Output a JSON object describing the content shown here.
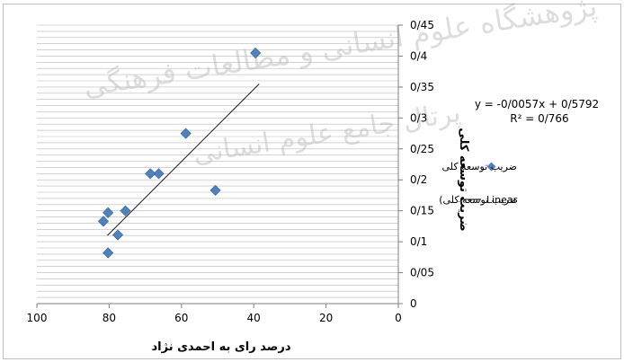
{
  "watermark": {
    "line1": "پژوهشگاه علوم انسانی و مطالعات فرهنگی",
    "line2": "پرتال جامع علوم انسانی"
  },
  "chart_data": {
    "type": "scatter",
    "title": "",
    "xlabel": "درصد رای به احمدی نژاد",
    "ylabel": "ضریب توسعه کلی",
    "x_reversed": true,
    "xlim": [
      0,
      100
    ],
    "ylim": [
      0,
      0.45
    ],
    "x_ticks": [
      {
        "value": 100,
        "label": "100"
      },
      {
        "value": 80,
        "label": "80"
      },
      {
        "value": 60,
        "label": "60"
      },
      {
        "value": 40,
        "label": "40"
      },
      {
        "value": 20,
        "label": "20"
      },
      {
        "value": 0,
        "label": "0"
      }
    ],
    "y_ticks": [
      {
        "value": 0,
        "label": "0"
      },
      {
        "value": 0.05,
        "label": "0/05"
      },
      {
        "value": 0.1,
        "label": "0/1"
      },
      {
        "value": 0.15,
        "label": "0/15"
      },
      {
        "value": 0.2,
        "label": "0/2"
      },
      {
        "value": 0.25,
        "label": "0/25"
      },
      {
        "value": 0.3,
        "label": "0/3"
      },
      {
        "value": 0.35,
        "label": "0/35"
      },
      {
        "value": 0.4,
        "label": "0/4"
      },
      {
        "value": 0.45,
        "label": "0/45"
      }
    ],
    "grid": true,
    "legend_position": "right",
    "series": [
      {
        "name": "ضریب توسعه کلی",
        "marker": "diamond",
        "color": "#4f81bd",
        "points": [
          {
            "x": 39.5,
            "y": 0.405
          },
          {
            "x": 58.8,
            "y": 0.275
          },
          {
            "x": 66.3,
            "y": 0.21
          },
          {
            "x": 68.6,
            "y": 0.21
          },
          {
            "x": 50.6,
            "y": 0.183
          },
          {
            "x": 75.5,
            "y": 0.15
          },
          {
            "x": 80.3,
            "y": 0.147
          },
          {
            "x": 81.6,
            "y": 0.133
          },
          {
            "x": 77.6,
            "y": 0.111
          },
          {
            "x": 80.3,
            "y": 0.082
          }
        ]
      }
    ],
    "trendline": {
      "legend_label": "ضریب توسعه کلی)",
      "legend_suffix": "Linear",
      "color": "#000000",
      "x_from": 80.5,
      "x_to": 38.5,
      "y_from": 0.11,
      "y_to": 0.355,
      "equation": "y = -0/0057x + 0/5792",
      "r_squared": "R² = 0/766"
    }
  }
}
